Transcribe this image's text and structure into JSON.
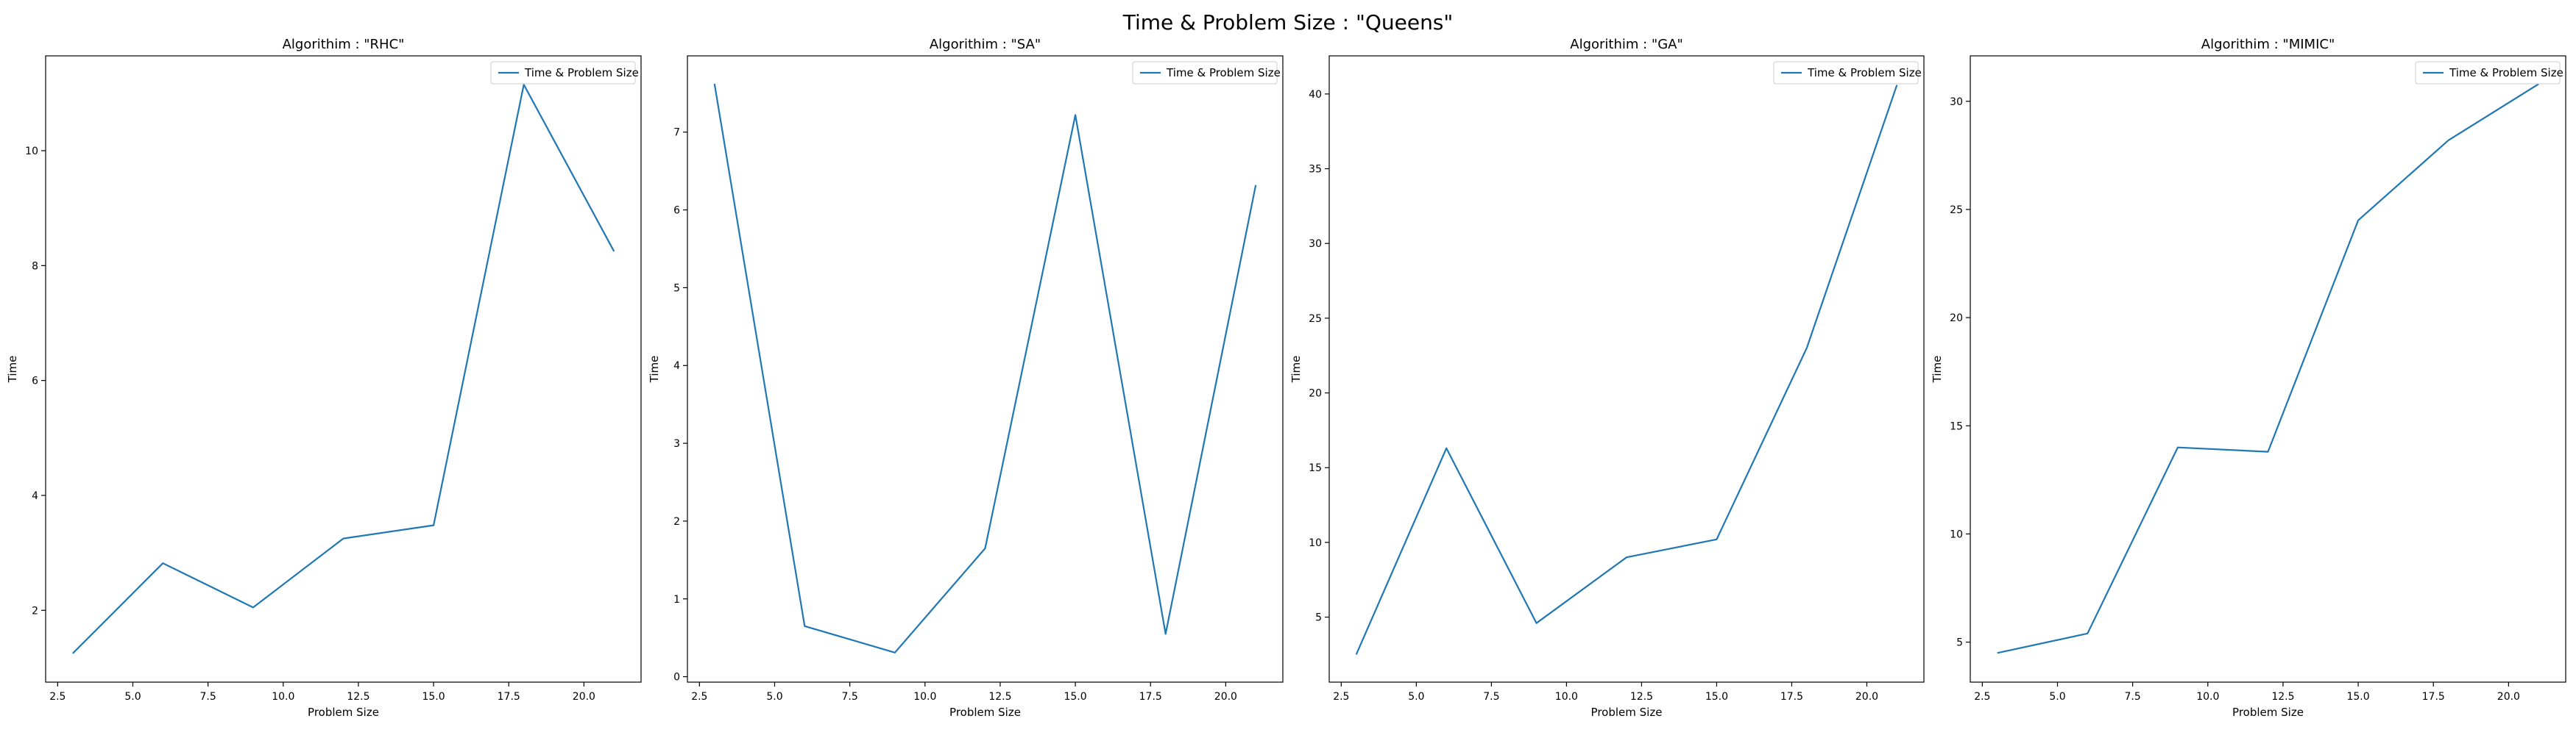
{
  "figure": {
    "title": "Time & Problem Size : \"Queens\""
  },
  "colors": {
    "line": "#1f77b4",
    "axes": "#000000",
    "legend_border": "#cccccc"
  },
  "chart_data": [
    {
      "type": "line",
      "title": "Algorithim : \"RHC\"",
      "xlabel": "Problem Size",
      "ylabel": "Time",
      "xlim": [
        2.1,
        21.9
      ],
      "ylim": [
        0.75,
        11.65
      ],
      "xticks": [
        2.5,
        5.0,
        7.5,
        10.0,
        12.5,
        15.0,
        17.5,
        20.0
      ],
      "xtick_labels": [
        "2.5",
        "5.0",
        "7.5",
        "10.0",
        "12.5",
        "15.0",
        "17.5",
        "20.0"
      ],
      "yticks": [
        2,
        4,
        6,
        8,
        10
      ],
      "ytick_labels": [
        "2",
        "4",
        "6",
        "8",
        "10"
      ],
      "legend_position": "upper right",
      "grid": false,
      "series": [
        {
          "name": "Time & Problem Size",
          "x": [
            3,
            6,
            9,
            12,
            15,
            18,
            21
          ],
          "y": [
            1.25,
            2.82,
            2.05,
            3.25,
            3.48,
            11.15,
            8.25
          ]
        }
      ]
    },
    {
      "type": "line",
      "title": "Algorithim : \"SA\"",
      "xlabel": "Problem Size",
      "ylabel": "Time",
      "xlim": [
        2.1,
        21.9
      ],
      "ylim": [
        -0.07,
        7.98
      ],
      "xticks": [
        2.5,
        5.0,
        7.5,
        10.0,
        12.5,
        15.0,
        17.5,
        20.0
      ],
      "xtick_labels": [
        "2.5",
        "5.0",
        "7.5",
        "10.0",
        "12.5",
        "15.0",
        "17.5",
        "20.0"
      ],
      "yticks": [
        0,
        1,
        2,
        3,
        4,
        5,
        6,
        7
      ],
      "ytick_labels": [
        "0",
        "1",
        "2",
        "3",
        "4",
        "5",
        "6",
        "7"
      ],
      "legend_position": "upper right",
      "grid": false,
      "series": [
        {
          "name": "Time & Problem Size",
          "x": [
            3,
            6,
            9,
            12,
            15,
            18,
            21
          ],
          "y": [
            7.62,
            0.65,
            0.31,
            1.65,
            7.22,
            0.55,
            6.32
          ]
        }
      ]
    },
    {
      "type": "line",
      "title": "Algorithim : \"GA\"",
      "xlabel": "Problem Size",
      "ylabel": "Time",
      "xlim": [
        2.1,
        21.9
      ],
      "ylim": [
        0.65,
        42.55
      ],
      "xticks": [
        2.5,
        5.0,
        7.5,
        10.0,
        12.5,
        15.0,
        17.5,
        20.0
      ],
      "xtick_labels": [
        "2.5",
        "5.0",
        "7.5",
        "10.0",
        "12.5",
        "15.0",
        "17.5",
        "20.0"
      ],
      "yticks": [
        5,
        10,
        15,
        20,
        25,
        30,
        35,
        40
      ],
      "ytick_labels": [
        "5",
        "10",
        "15",
        "20",
        "25",
        "30",
        "35",
        "40"
      ],
      "legend_position": "upper right",
      "grid": false,
      "series": [
        {
          "name": "Time & Problem Size",
          "x": [
            3,
            6,
            9,
            12,
            15,
            18,
            21
          ],
          "y": [
            2.5,
            16.3,
            4.6,
            9.0,
            10.2,
            23.0,
            40.6
          ]
        }
      ]
    },
    {
      "type": "line",
      "title": "Algorithim : \"MIMIC\"",
      "xlabel": "Problem Size",
      "ylabel": "Time",
      "xlim": [
        2.1,
        21.9
      ],
      "ylim": [
        3.15,
        32.1
      ],
      "xticks": [
        2.5,
        5.0,
        7.5,
        10.0,
        12.5,
        15.0,
        17.5,
        20.0
      ],
      "xtick_labels": [
        "2.5",
        "5.0",
        "7.5",
        "10.0",
        "12.5",
        "15.0",
        "17.5",
        "20.0"
      ],
      "yticks": [
        5,
        10,
        15,
        20,
        25,
        30
      ],
      "ytick_labels": [
        "5",
        "10",
        "15",
        "20",
        "25",
        "30"
      ],
      "legend_position": "upper right",
      "grid": false,
      "series": [
        {
          "name": "Time & Problem Size",
          "x": [
            3,
            6,
            9,
            12,
            15,
            18,
            21
          ],
          "y": [
            4.5,
            5.4,
            14.0,
            13.8,
            24.5,
            28.2,
            30.8
          ]
        }
      ]
    }
  ]
}
